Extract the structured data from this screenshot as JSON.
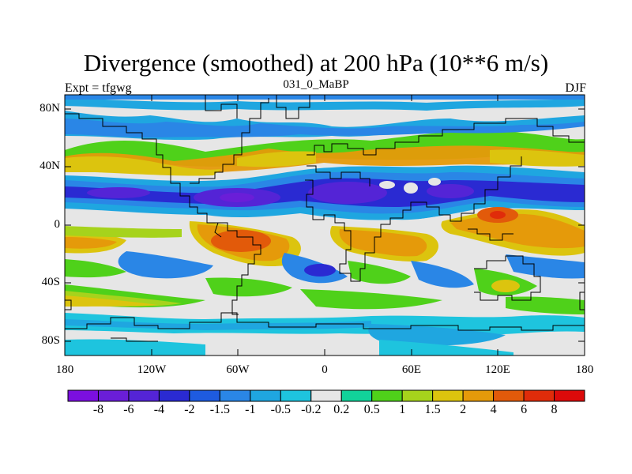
{
  "title": "Divergence (smoothed) at 200 hPa (10**6 m/s)",
  "left_label": "Expt = tfgwg",
  "center_label": "031_0_MaBP",
  "right_label": "DJF",
  "lat_labels": [
    "80N",
    "40N",
    "0",
    "40S",
    "80S"
  ],
  "lon_labels": [
    "180",
    "120W",
    "60W",
    "0",
    "60E",
    "120E",
    "180"
  ],
  "colorbar": {
    "labels": [
      "-8",
      "-6",
      "-4",
      "-2",
      "-1.5",
      "-1",
      "-0.5",
      "-0.2",
      "0.2",
      "0.5",
      "1",
      "1.5",
      "2",
      "4",
      "6",
      "8"
    ],
    "colors": [
      "#7b0fe0",
      "#6a1ed8",
      "#5424d6",
      "#2a2ad2",
      "#1e5be0",
      "#2a86e6",
      "#1fa6e0",
      "#1ec4de",
      "#e6e6e6",
      "#12d29a",
      "#4fd11a",
      "#a6d31c",
      "#dcc40e",
      "#e59a0a",
      "#e25a0a",
      "#e02c0a",
      "#dc0a0a"
    ]
  }
}
